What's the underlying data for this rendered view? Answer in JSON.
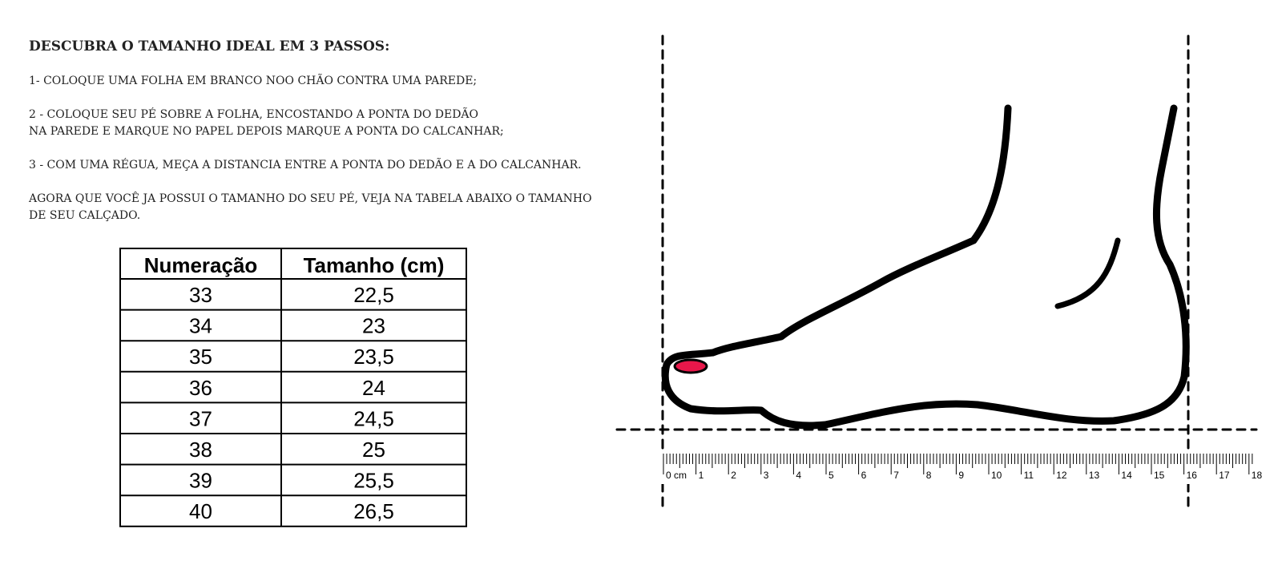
{
  "instructions": {
    "title": "DESCUBRA O TAMANHO IDEAL EM 3 PASSOS:",
    "steps": [
      [
        "1- COLOQUE UMA FOLHA EM BRANCO NOO CHÃO CONTRA UMA PAREDE;"
      ],
      [
        "2 - COLOQUE SEU PÉ SOBRE A FOLHA, ENCOSTANDO A PONTA DO DEDÃO",
        "NA PAREDE E MARQUE NO PAPEL DEPOIS MARQUE A PONTA DO CALCANHAR;"
      ],
      [
        "3 - COM UMA RÉGUA, MEÇA A DISTANCIA ENTRE A PONTA DO DEDÃO E A DO CALCANHAR."
      ],
      [
        " AGORA QUE VOCÊ JA POSSUI O TAMANHO DO SEU PÉ, VEJA NA TABELA ABAIXO O TAMANHO",
        "DE SEU CALÇADO."
      ]
    ]
  },
  "table": {
    "header": [
      "Numeração",
      "Tamanho (cm)"
    ],
    "rows": [
      [
        "33",
        "22,5"
      ],
      [
        "34",
        "23"
      ],
      [
        "35",
        "23,5"
      ],
      [
        "36",
        "24"
      ],
      [
        "37",
        "24,5"
      ],
      [
        "38",
        "25"
      ],
      [
        "39",
        "25,5"
      ],
      [
        "40",
        "26,5"
      ]
    ]
  },
  "ruler": {
    "labels": [
      "0 cm",
      "1",
      "2",
      "3",
      "4",
      "5",
      "6",
      "7",
      "8",
      "9",
      "10",
      "11",
      "12",
      "13",
      "14",
      "15",
      "16",
      "17",
      "18"
    ]
  }
}
